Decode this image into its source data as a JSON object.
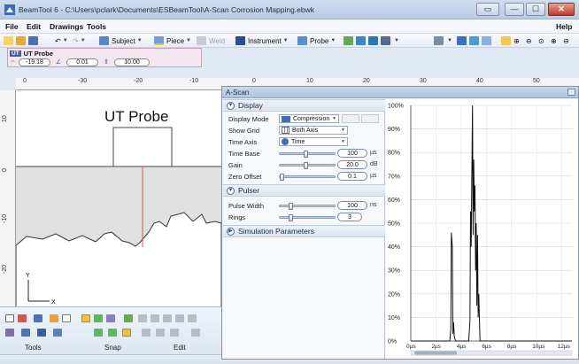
{
  "window": {
    "title": "BeamTool 6 - C:\\Users\\pclark\\Documents\\ESBeamTool\\A-Scan Corrosion Mapping.ebwk",
    "minimize_glyph": "—",
    "maximize_glyph": "☐",
    "close_glyph": "✕",
    "help_glyph": "▭"
  },
  "menu": {
    "items": [
      "File",
      "Edit",
      "Drawings",
      "Tools"
    ],
    "help": "Help"
  },
  "toolbar": {
    "subject": "Subject",
    "piece": "Piece",
    "weld": "Weld",
    "instrument": "Instrument",
    "probe": "Probe"
  },
  "probe_panel": {
    "badge": "UT",
    "name": "UT Probe",
    "values": [
      "-19.18",
      "0.01",
      "10.00"
    ]
  },
  "ruler": {
    "h_labels": [
      "0",
      "-30",
      "-20",
      "-10",
      "0",
      "10",
      "20",
      "30",
      "40",
      "50"
    ],
    "v_labels": [
      "10",
      "0",
      "-10",
      "-20"
    ]
  },
  "canvas": {
    "title": "UT Probe",
    "axis_y": "Y",
    "axis_x": "X"
  },
  "bottom_tools": {
    "groups": [
      "Tools",
      "Snap",
      "Edit"
    ]
  },
  "ascan": {
    "window_title": "A-Scan",
    "sections": {
      "display": "Display",
      "pulser": "Pulser",
      "simulation": "Simulation Parameters"
    },
    "display": {
      "display_mode_label": "Display Mode",
      "display_mode_value": "Compression",
      "show_grid_label": "Show Grid",
      "show_grid_value": "Both Axis",
      "time_axis_label": "Time Axis",
      "time_axis_value": "Time",
      "time_base_label": "Time Base",
      "time_base_value": "100",
      "time_base_unit": "µs",
      "gain_label": "Gain",
      "gain_value": "20.0",
      "gain_unit": "dB",
      "zero_offset_label": "Zero Offset",
      "zero_offset_value": "0.1",
      "zero_offset_unit": "µs",
      "time_base_level": 0.48,
      "gain_level": 0.48,
      "zero_offset_level": 0.02
    },
    "pulser": {
      "pulse_width_label": "Pulse Width",
      "pulse_width_value": "100",
      "pulse_width_unit": "ns",
      "rings_label": "Rings",
      "rings_value": "3",
      "pulse_width_level": 0.18,
      "rings_level": 0.18
    }
  },
  "chart_data": {
    "type": "line",
    "title": "",
    "xlabel": "",
    "ylabel": "",
    "x_ticks": [
      "0µs",
      "2µs",
      "4µs",
      "6µs",
      "8µs",
      "10µs",
      "12µs"
    ],
    "y_ticks": [
      "0%",
      "10%",
      "20%",
      "30%",
      "40%",
      "50%",
      "60%",
      "70%",
      "80%",
      "90%",
      "100%"
    ],
    "xlim": [
      0,
      12.8
    ],
    "ylim": [
      0,
      100
    ],
    "grid": "both",
    "series": [
      {
        "values_x": [
          0,
          3.1,
          3.18,
          3.22,
          3.3,
          3.35,
          3.4,
          3.45,
          3.55,
          4.6,
          4.7,
          4.75,
          4.8,
          4.9,
          4.95,
          5.0,
          5.05,
          5.1,
          5.15,
          5.2,
          5.25,
          5.3,
          5.35,
          5.4,
          5.5,
          12.8
        ],
        "values_y": [
          0,
          0,
          5,
          46,
          40,
          3,
          8,
          2,
          0,
          0,
          8,
          55,
          40,
          100,
          45,
          77,
          55,
          66,
          30,
          50,
          15,
          45,
          10,
          20,
          0,
          0
        ]
      }
    ]
  }
}
